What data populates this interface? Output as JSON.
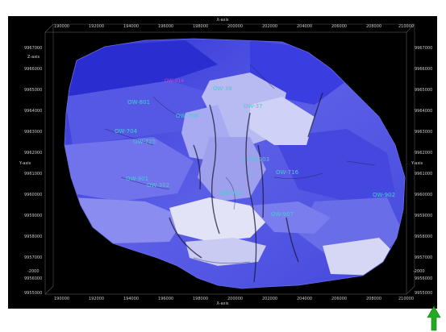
{
  "axes": {
    "x_title": "X-axis",
    "y_title": "Y-axis",
    "z_title": "Z-axis",
    "x_ticks": [
      "190000",
      "192000",
      "194000",
      "196000",
      "198000",
      "200000",
      "202000",
      "204000",
      "206000",
      "208000",
      "210000"
    ],
    "y_ticks": [
      "9967000",
      "9966000",
      "9965000",
      "9964000",
      "9963000",
      "9962000",
      "9961000",
      "9960000",
      "9959000",
      "9958000",
      "9957000",
      "9956000",
      "9955000"
    ],
    "z_ticks": [
      "-2000",
      "-2000"
    ]
  },
  "wells": [
    {
      "label": "OW-801"
    },
    {
      "label": "OW-38"
    },
    {
      "label": "OW-37"
    },
    {
      "label": "OW-706"
    },
    {
      "label": "OW-704"
    },
    {
      "label": "OW-725"
    },
    {
      "label": "OW-903"
    },
    {
      "label": "OW-716"
    },
    {
      "label": "OW-901"
    },
    {
      "label": "OW-302"
    },
    {
      "label": "OW-905"
    },
    {
      "label": "OW-902"
    },
    {
      "label": "OW-907"
    }
  ],
  "well_marker": {
    "label": "OW-914"
  },
  "colors": {
    "background": "#000000",
    "surface_dark": "#3a3ee0",
    "surface_mid": "#6c70ec",
    "surface_light": "#a8aaf2",
    "surface_white": "#e4e4f4",
    "well_label": "#3fd0d0",
    "north_arrow": "#22aa22"
  },
  "icons": {
    "north_arrow": "north-arrow-icon"
  }
}
